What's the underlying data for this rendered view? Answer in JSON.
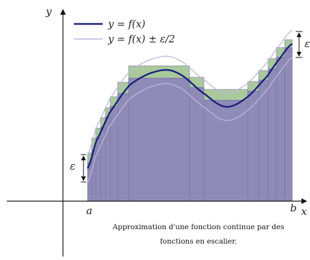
{
  "labels": {
    "y_axis": "y",
    "x_axis": "x",
    "a": "a",
    "b": "b",
    "epsilon_left": "ε",
    "epsilon_right": "ε"
  },
  "legend": {
    "curve": "y = f(x)",
    "band": "y = f(x) ± ε/2"
  },
  "caption": {
    "line1": "Approximation d'une fonction continue par des",
    "line2": "fonctions en escalier."
  },
  "colors": {
    "curve": "#1b1f7a",
    "band": "#bcb6de",
    "step_fill": "#8e8cb6",
    "step_border": "#7a78a6",
    "band_fill": "#a9c99c",
    "axis": "#111111"
  }
}
